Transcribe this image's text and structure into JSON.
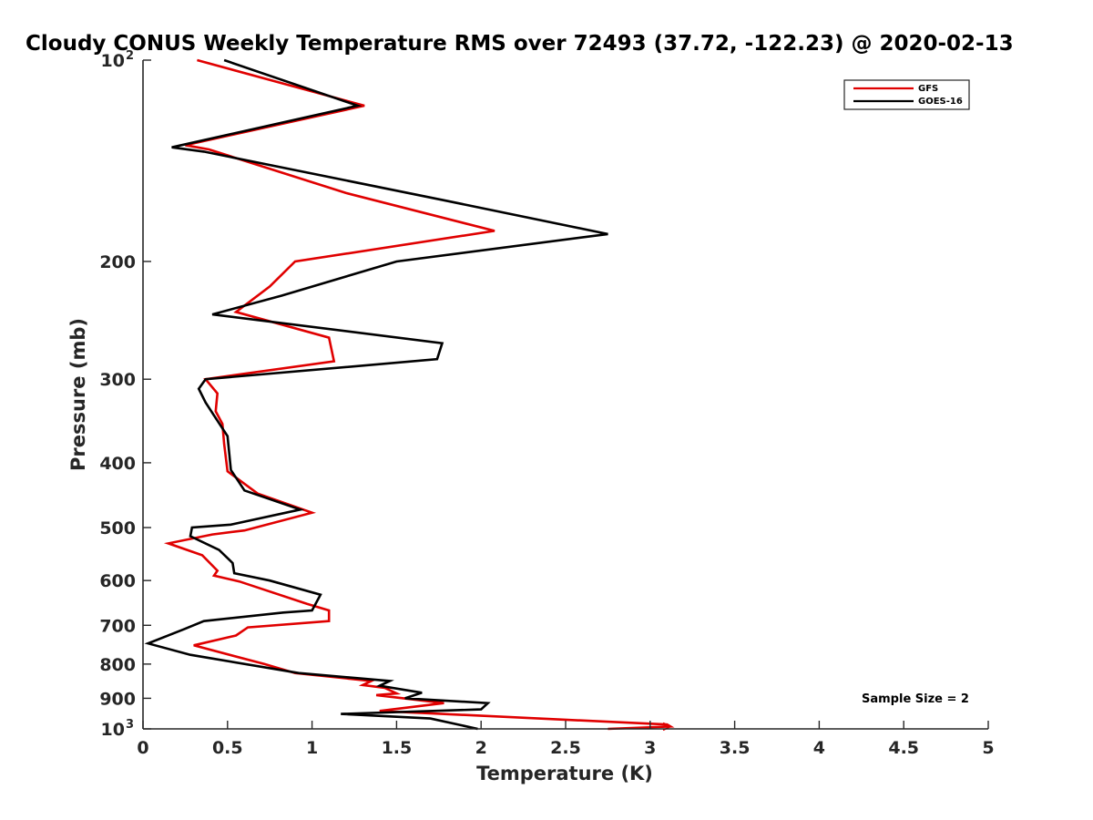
{
  "chart_data": {
    "type": "line",
    "title": "Cloudy CONUS Weekly Temperature RMS over 72493 (37.72, -122.23) @ 2020-02-13",
    "xlabel": "Temperature (K)",
    "ylabel": "Pressure (mb)",
    "xlim": [
      0,
      5
    ],
    "ylim": [
      100,
      1000
    ],
    "y_scale": "log",
    "y_reversed": true,
    "x_ticks": [
      "0",
      "0.5",
      "1",
      "1.5",
      "2",
      "2.5",
      "3",
      "3.5",
      "4",
      "4.5",
      "5"
    ],
    "y_ticks": [
      {
        "value": 100,
        "label": "10",
        "sup": "2"
      },
      {
        "value": 200,
        "label": "200",
        "sup": ""
      },
      {
        "value": 300,
        "label": "300",
        "sup": ""
      },
      {
        "value": 400,
        "label": "400",
        "sup": ""
      },
      {
        "value": 500,
        "label": "500",
        "sup": ""
      },
      {
        "value": 600,
        "label": "600",
        "sup": ""
      },
      {
        "value": 700,
        "label": "700",
        "sup": ""
      },
      {
        "value": 800,
        "label": "800",
        "sup": ""
      },
      {
        "value": 900,
        "label": "900",
        "sup": ""
      },
      {
        "value": 1000,
        "label": "10",
        "sup": "3"
      }
    ],
    "grid": false,
    "legend_position": "top-right",
    "annotation": "Sample Size = 2",
    "series": [
      {
        "name": "GFS",
        "color": "#e00000",
        "x": [
          0.32,
          1.31,
          0.25,
          0.39,
          1.2,
          2.08,
          0.9,
          0.75,
          0.55,
          1.1,
          1.13,
          0.37,
          0.44,
          0.43,
          0.47,
          0.48,
          0.5,
          0.68,
          1.0,
          0.6,
          0.41,
          0.15,
          0.35,
          0.44,
          0.42,
          0.57,
          0.97,
          1.1,
          1.1,
          0.62,
          0.55,
          0.3,
          0.72,
          0.9,
          1.35,
          1.3,
          1.43,
          1.5,
          1.38,
          1.78,
          1.4,
          3.1,
          3.12,
          2.75
        ],
        "y": [
          100,
          117,
          134,
          136,
          158,
          180,
          200,
          218,
          238,
          260,
          282,
          300,
          315,
          335,
          350,
          375,
          412,
          445,
          475,
          505,
          512,
          528,
          550,
          580,
          590,
          602,
          650,
          665,
          690,
          705,
          725,
          750,
          800,
          825,
          848,
          860,
          868,
          885,
          890,
          915,
          940,
          985,
          992,
          1000
        ]
      },
      {
        "name": "GOES-16",
        "color": "#000000",
        "x": [
          0.48,
          1.27,
          0.17,
          0.36,
          1.78,
          2.75,
          1.5,
          0.82,
          0.41,
          1.77,
          1.74,
          0.37,
          0.33,
          0.37,
          0.42,
          0.5,
          0.52,
          0.6,
          0.93,
          0.52,
          0.29,
          0.28,
          0.45,
          0.53,
          0.54,
          0.75,
          1.05,
          1.0,
          0.83,
          0.36,
          0.24,
          0.03,
          0.28,
          0.92,
          1.46,
          1.4,
          1.65,
          1.55,
          2.04,
          2.0,
          1.17,
          1.7,
          1.98
        ],
        "y": [
          100,
          117,
          135,
          137,
          162,
          182,
          200,
          225,
          240,
          265,
          280,
          300,
          310,
          325,
          340,
          365,
          410,
          440,
          470,
          495,
          500,
          515,
          540,
          565,
          585,
          600,
          630,
          665,
          670,
          690,
          710,
          745,
          775,
          825,
          848,
          862,
          883,
          900,
          915,
          935,
          950,
          965,
          1000
        ]
      }
    ]
  }
}
